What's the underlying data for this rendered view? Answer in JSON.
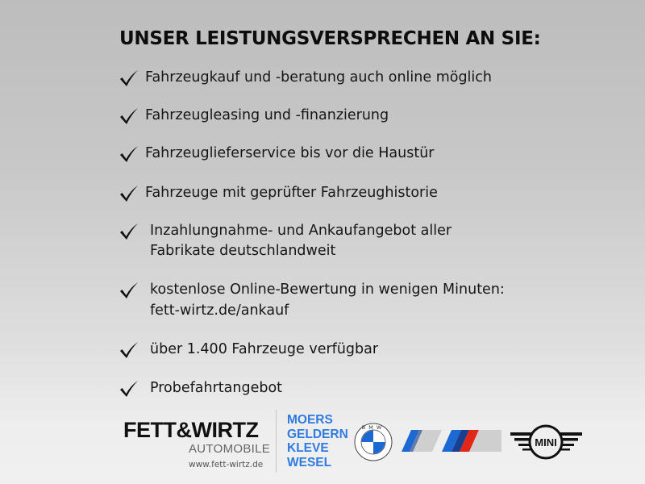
{
  "title": "UNSER LEISTUNGSVERSPRECHEN AN SIE:",
  "items": [
    {
      "lines": [
        "Fahrzeugkauf und -beratung auch online möglich"
      ]
    },
    {
      "lines": [
        "Fahrzeugleasing und -finanzierung"
      ]
    },
    {
      "lines": [
        "Fahrzeuglieferservice bis vor die Haustür"
      ]
    },
    {
      "lines": [
        "Fahrzeuge mit geprüfter Fahrzeughistorie"
      ]
    },
    {
      "lines": [
        "Inzahlungnahme- und Ankaufangebot aller",
        "Fabrikate deutschlandweit"
      ]
    },
    {
      "lines": [
        "kostenlose Online-Bewertung in wenigen Minuten:",
        "fett-wirtz.de/ankauf"
      ]
    },
    {
      "lines": [
        "über 1.400 Fahrzeuge verfügbar"
      ]
    },
    {
      "lines": [
        "Probefahrtangebot"
      ]
    }
  ],
  "icons": {
    "bullet": "checkmark-icon"
  },
  "footer": {
    "brand": "FETT&WIRTZ",
    "brand_sub": "AUTOMOBILE",
    "website": "www.fett-wirtz.de",
    "cities": [
      "MOERS",
      "GELDERN",
      "KLEVE",
      "WESEL"
    ],
    "bmw_logo_text": "BMW",
    "mini_logo_text": "MINI"
  },
  "colors": {
    "city_blue": "#2f7be0",
    "bmw_blue": "#1c69d4",
    "m_red": "#e22718",
    "m_dark_blue": "#1b3f8f"
  }
}
